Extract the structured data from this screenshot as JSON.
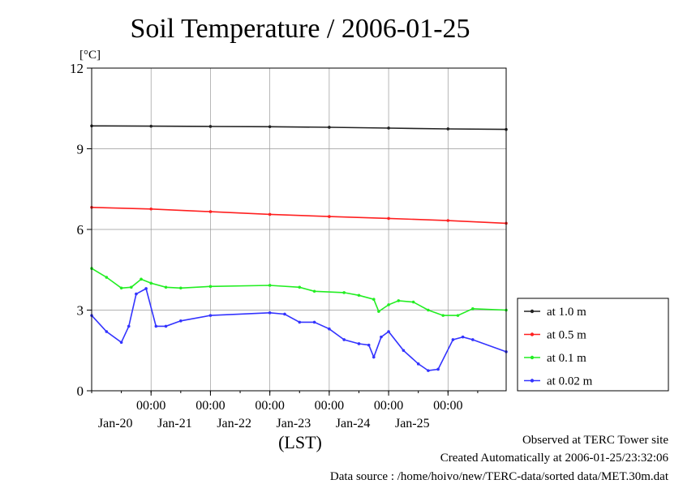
{
  "chart_data": {
    "type": "scatter",
    "title": "Soil Temperature / 2006-01-25",
    "ylabel": "[°C]",
    "xlabel": "(LST)",
    "ylim": [
      0,
      12
    ],
    "xlim": [
      "2006-01-19 00:00",
      "2006-01-25 23:30"
    ],
    "yticks": [
      0,
      3,
      6,
      9,
      12
    ],
    "xticks": [
      {
        "time": "00:00",
        "date": "Jan-20"
      },
      {
        "time": "00:00",
        "date": "Jan-21"
      },
      {
        "time": "00:00",
        "date": "Jan-22"
      },
      {
        "time": "00:00",
        "date": "Jan-23"
      },
      {
        "time": "00:00",
        "date": "Jan-24"
      },
      {
        "time": "00:00",
        "date": "Jan-25"
      }
    ],
    "grid": true,
    "legend_position": "right",
    "series": [
      {
        "name": "at 1.0 m",
        "color": "#222222",
        "points": [
          [
            "2006-01-19 00:00",
            9.85
          ],
          [
            "2006-01-20 00:00",
            9.84
          ],
          [
            "2006-01-21 00:00",
            9.83
          ],
          [
            "2006-01-22 00:00",
            9.82
          ],
          [
            "2006-01-23 00:00",
            9.8
          ],
          [
            "2006-01-24 00:00",
            9.77
          ],
          [
            "2006-01-25 00:00",
            9.74
          ],
          [
            "2006-01-25 23:30",
            9.72
          ]
        ]
      },
      {
        "name": "at 0.5 m",
        "color": "#ff2020",
        "points": [
          [
            "2006-01-19 00:00",
            6.82
          ],
          [
            "2006-01-20 00:00",
            6.76
          ],
          [
            "2006-01-21 00:00",
            6.66
          ],
          [
            "2006-01-22 00:00",
            6.56
          ],
          [
            "2006-01-23 00:00",
            6.48
          ],
          [
            "2006-01-24 00:00",
            6.41
          ],
          [
            "2006-01-25 00:00",
            6.33
          ],
          [
            "2006-01-25 23:30",
            6.23
          ]
        ]
      },
      {
        "name": "at 0.1 m",
        "color": "#22ee22",
        "points": [
          [
            "2006-01-19 00:00",
            4.55
          ],
          [
            "2006-01-19 06:00",
            4.22
          ],
          [
            "2006-01-19 12:00",
            3.82
          ],
          [
            "2006-01-19 16:00",
            3.85
          ],
          [
            "2006-01-19 20:00",
            4.15
          ],
          [
            "2006-01-20 00:00",
            4.0
          ],
          [
            "2006-01-20 06:00",
            3.85
          ],
          [
            "2006-01-20 12:00",
            3.82
          ],
          [
            "2006-01-21 00:00",
            3.88
          ],
          [
            "2006-01-22 00:00",
            3.92
          ],
          [
            "2006-01-22 12:00",
            3.85
          ],
          [
            "2006-01-22 18:00",
            3.7
          ],
          [
            "2006-01-23 06:00",
            3.65
          ],
          [
            "2006-01-23 12:00",
            3.55
          ],
          [
            "2006-01-23 18:00",
            3.4
          ],
          [
            "2006-01-23 20:00",
            2.95
          ],
          [
            "2006-01-24 00:00",
            3.2
          ],
          [
            "2006-01-24 04:00",
            3.35
          ],
          [
            "2006-01-24 10:00",
            3.3
          ],
          [
            "2006-01-24 16:00",
            3.0
          ],
          [
            "2006-01-24 22:00",
            2.8
          ],
          [
            "2006-01-25 04:00",
            2.8
          ],
          [
            "2006-01-25 10:00",
            3.05
          ],
          [
            "2006-01-25 23:30",
            3.0
          ]
        ]
      },
      {
        "name": "at 0.02 m",
        "color": "#3333ff",
        "points": [
          [
            "2006-01-19 00:00",
            2.8
          ],
          [
            "2006-01-19 06:00",
            2.2
          ],
          [
            "2006-01-19 12:00",
            1.8
          ],
          [
            "2006-01-19 15:00",
            2.4
          ],
          [
            "2006-01-19 18:00",
            3.6
          ],
          [
            "2006-01-19 22:00",
            3.8
          ],
          [
            "2006-01-20 02:00",
            2.4
          ],
          [
            "2006-01-20 06:00",
            2.4
          ],
          [
            "2006-01-20 12:00",
            2.6
          ],
          [
            "2006-01-21 00:00",
            2.8
          ],
          [
            "2006-01-22 00:00",
            2.9
          ],
          [
            "2006-01-22 06:00",
            2.85
          ],
          [
            "2006-01-22 12:00",
            2.55
          ],
          [
            "2006-01-22 18:00",
            2.55
          ],
          [
            "2006-01-23 00:00",
            2.3
          ],
          [
            "2006-01-23 06:00",
            1.9
          ],
          [
            "2006-01-23 12:00",
            1.75
          ],
          [
            "2006-01-23 16:00",
            1.7
          ],
          [
            "2006-01-23 18:00",
            1.25
          ],
          [
            "2006-01-23 21:00",
            2.0
          ],
          [
            "2006-01-24 00:00",
            2.2
          ],
          [
            "2006-01-24 06:00",
            1.5
          ],
          [
            "2006-01-24 12:00",
            1.0
          ],
          [
            "2006-01-24 16:00",
            0.75
          ],
          [
            "2006-01-24 20:00",
            0.8
          ],
          [
            "2006-01-25 02:00",
            1.9
          ],
          [
            "2006-01-25 06:00",
            2.0
          ],
          [
            "2006-01-25 10:00",
            1.9
          ],
          [
            "2006-01-25 23:30",
            1.45
          ]
        ]
      }
    ]
  },
  "footer": {
    "observed": "Observed at TERC Tower site",
    "created": "Created Automatically at 2006-01-25/23:32:06",
    "source": "Data source : /home/hoivo/new/TERC-data/sorted  data/MET.30m.dat"
  }
}
